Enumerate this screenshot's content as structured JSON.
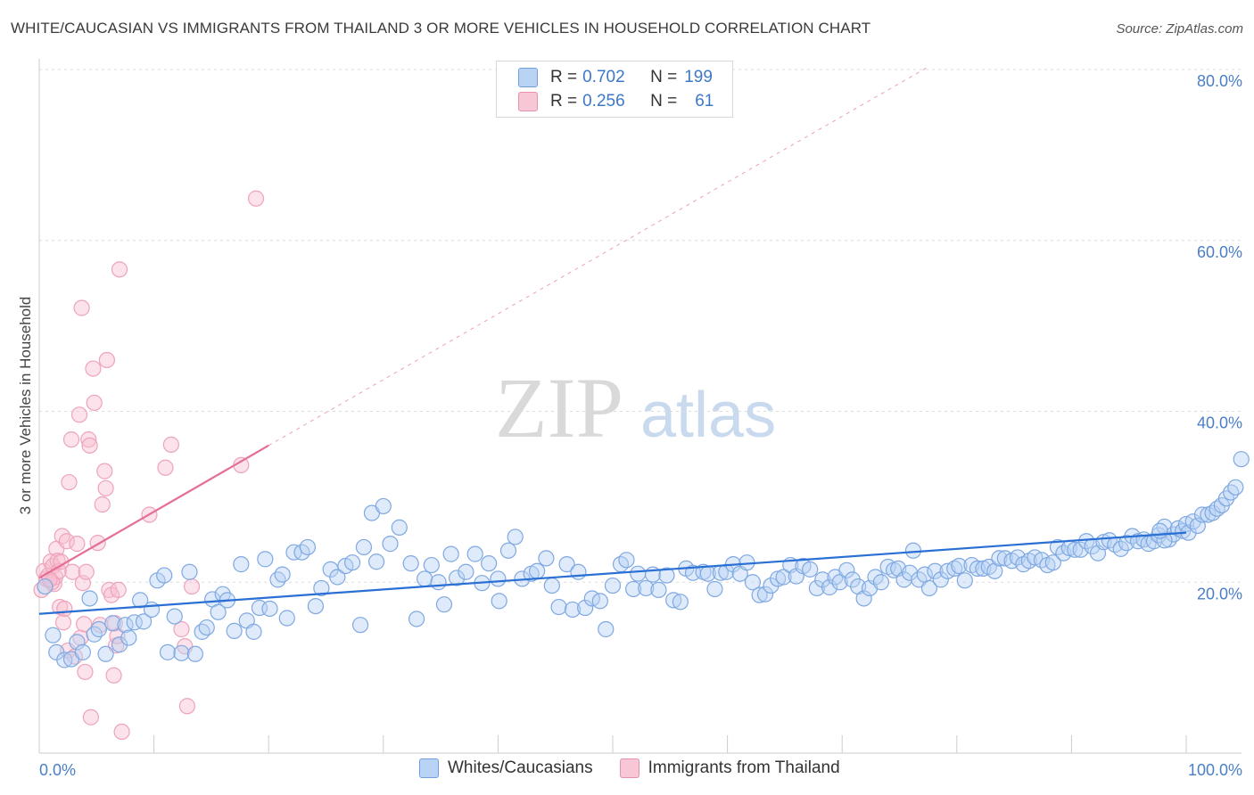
{
  "title": "WHITE/CAUCASIAN VS IMMIGRANTS FROM THAILAND 3 OR MORE VEHICLES IN HOUSEHOLD CORRELATION CHART",
  "source": "Source: ZipAtlas.com",
  "watermark": {
    "zip": "ZIP",
    "atlas": "atlas"
  },
  "legend_top": [
    {
      "r_label": "R = ",
      "r": "0.702",
      "n_label": "N = ",
      "n": "199",
      "color": "#6f9fe0"
    },
    {
      "r_label": "R = ",
      "r": "0.256",
      "n_label": "N = ",
      "n": "61",
      "color": "#e890ad"
    }
  ],
  "legend_bottom": [
    {
      "label": "Whites/Caucasians",
      "color": "#6f9fe0"
    },
    {
      "label": "Immigrants from Thailand",
      "color": "#e890ad"
    }
  ],
  "chart_data": {
    "type": "scatter",
    "title": "WHITE/CAUCASIAN VS IMMIGRANTS FROM THAILAND 3 OR MORE VEHICLES IN HOUSEHOLD CORRELATION CHART",
    "xlabel": "",
    "ylabel": "3 or more Vehicles in Household",
    "xlim": [
      0,
      100
    ],
    "ylim": [
      0,
      80
    ],
    "x_tick_labels": [
      "0.0%",
      "100.0%"
    ],
    "y_tick_labels": [
      "20.0%",
      "40.0%",
      "60.0%",
      "80.0%"
    ],
    "y_tick_values": [
      20,
      40,
      60,
      80
    ],
    "grid": true,
    "legend_position": "top-center",
    "series": [
      {
        "name": "Whites/Caucasians",
        "color": "#6f9fe0",
        "trend": {
          "x": [
            0,
            100
          ],
          "y": [
            16.3,
            25.8
          ]
        },
        "points": [
          [
            0.5,
            19.5
          ],
          [
            1.2,
            13.8
          ],
          [
            1.5,
            11.8
          ],
          [
            2.2,
            10.9
          ],
          [
            2.8,
            11.0
          ],
          [
            3.3,
            13.0
          ],
          [
            3.8,
            11.8
          ],
          [
            4.4,
            18.1
          ],
          [
            4.8,
            13.9
          ],
          [
            5.2,
            14.5
          ],
          [
            5.8,
            11.6
          ],
          [
            6.4,
            15.2
          ],
          [
            7.0,
            12.7
          ],
          [
            7.5,
            15.0
          ],
          [
            7.8,
            13.5
          ],
          [
            8.3,
            15.3
          ],
          [
            8.8,
            17.9
          ],
          [
            9.1,
            15.4
          ],
          [
            9.8,
            16.8
          ],
          [
            10.3,
            20.2
          ],
          [
            10.9,
            20.8
          ],
          [
            11.2,
            11.8
          ],
          [
            11.8,
            16.0
          ],
          [
            12.4,
            11.7
          ],
          [
            13.1,
            21.2
          ],
          [
            13.6,
            11.6
          ],
          [
            14.2,
            14.2
          ],
          [
            14.6,
            14.7
          ],
          [
            15.1,
            18.0
          ],
          [
            15.6,
            16.5
          ],
          [
            16.0,
            18.6
          ],
          [
            16.4,
            17.9
          ],
          [
            17.0,
            14.3
          ],
          [
            17.6,
            22.1
          ],
          [
            18.1,
            15.5
          ],
          [
            18.7,
            14.2
          ],
          [
            19.2,
            17.0
          ],
          [
            19.7,
            22.7
          ],
          [
            20.1,
            16.9
          ],
          [
            20.8,
            20.3
          ],
          [
            21.2,
            20.9
          ],
          [
            21.6,
            15.8
          ],
          [
            22.2,
            23.5
          ],
          [
            22.9,
            23.5
          ],
          [
            23.4,
            24.1
          ],
          [
            24.1,
            17.2
          ],
          [
            24.6,
            19.3
          ],
          [
            25.4,
            21.5
          ],
          [
            26.0,
            20.6
          ],
          [
            26.7,
            21.9
          ],
          [
            27.3,
            22.3
          ],
          [
            28.0,
            15.0
          ],
          [
            28.3,
            24.1
          ],
          [
            29.0,
            28.1
          ],
          [
            29.4,
            22.4
          ],
          [
            30.0,
            28.9
          ],
          [
            30.6,
            24.5
          ],
          [
            31.4,
            26.4
          ],
          [
            32.4,
            22.2
          ],
          [
            32.9,
            15.7
          ],
          [
            33.6,
            20.4
          ],
          [
            34.2,
            22.0
          ],
          [
            34.8,
            20.0
          ],
          [
            35.3,
            17.4
          ],
          [
            35.9,
            23.3
          ],
          [
            36.4,
            20.5
          ],
          [
            37.2,
            21.2
          ],
          [
            38.0,
            23.3
          ],
          [
            38.6,
            19.9
          ],
          [
            39.2,
            22.2
          ],
          [
            40.0,
            20.4
          ],
          [
            40.1,
            17.8
          ],
          [
            40.9,
            23.7
          ],
          [
            41.5,
            25.3
          ],
          [
            42.1,
            20.4
          ],
          [
            42.9,
            21.0
          ],
          [
            43.4,
            21.3
          ],
          [
            44.2,
            22.8
          ],
          [
            44.7,
            19.6
          ],
          [
            45.3,
            17.1
          ],
          [
            46.0,
            22.1
          ],
          [
            46.5,
            16.8
          ],
          [
            47.0,
            21.2
          ],
          [
            47.6,
            17.0
          ],
          [
            48.2,
            18.1
          ],
          [
            48.9,
            17.8
          ],
          [
            49.4,
            14.5
          ],
          [
            50.0,
            19.6
          ],
          [
            50.7,
            22.1
          ],
          [
            51.2,
            22.6
          ],
          [
            51.8,
            19.2
          ],
          [
            52.2,
            21.0
          ],
          [
            52.9,
            19.3
          ],
          [
            53.5,
            20.9
          ],
          [
            54.0,
            19.1
          ],
          [
            54.7,
            20.8
          ],
          [
            55.3,
            17.9
          ],
          [
            55.9,
            17.7
          ],
          [
            56.4,
            21.6
          ],
          [
            57.0,
            21.1
          ],
          [
            57.9,
            21.2
          ],
          [
            58.3,
            21.0
          ],
          [
            58.9,
            19.2
          ],
          [
            59.4,
            21.1
          ],
          [
            59.9,
            21.2
          ],
          [
            60.5,
            22.1
          ],
          [
            61.1,
            21.0
          ],
          [
            61.7,
            22.3
          ],
          [
            62.2,
            20.0
          ],
          [
            62.8,
            18.5
          ],
          [
            63.3,
            18.6
          ],
          [
            63.8,
            19.6
          ],
          [
            64.4,
            20.4
          ],
          [
            64.9,
            20.6
          ],
          [
            65.5,
            22.0
          ],
          [
            66.0,
            20.7
          ],
          [
            66.6,
            21.9
          ],
          [
            67.2,
            21.5
          ],
          [
            67.8,
            19.3
          ],
          [
            68.3,
            20.3
          ],
          [
            68.9,
            19.4
          ],
          [
            69.4,
            20.6
          ],
          [
            69.8,
            20.0
          ],
          [
            70.4,
            21.4
          ],
          [
            70.9,
            20.3
          ],
          [
            71.4,
            19.5
          ],
          [
            71.9,
            18.1
          ],
          [
            72.4,
            19.3
          ],
          [
            72.9,
            20.6
          ],
          [
            73.4,
            20.0
          ],
          [
            74.0,
            21.8
          ],
          [
            74.5,
            21.4
          ],
          [
            74.9,
            21.6
          ],
          [
            75.4,
            20.3
          ],
          [
            75.9,
            21.1
          ],
          [
            76.2,
            23.7
          ],
          [
            76.7,
            20.3
          ],
          [
            77.2,
            20.9
          ],
          [
            77.6,
            19.3
          ],
          [
            78.1,
            21.3
          ],
          [
            78.6,
            20.3
          ],
          [
            79.2,
            21.3
          ],
          [
            79.8,
            21.6
          ],
          [
            80.2,
            21.9
          ],
          [
            80.7,
            20.2
          ],
          [
            81.3,
            22.0
          ],
          [
            81.8,
            21.6
          ],
          [
            82.3,
            21.6
          ],
          [
            82.8,
            21.8
          ],
          [
            83.3,
            21.3
          ],
          [
            83.7,
            22.8
          ],
          [
            84.2,
            22.8
          ],
          [
            84.8,
            22.5
          ],
          [
            85.3,
            22.9
          ],
          [
            85.8,
            22.1
          ],
          [
            86.3,
            22.5
          ],
          [
            86.8,
            22.9
          ],
          [
            87.4,
            22.6
          ],
          [
            87.9,
            22.0
          ],
          [
            88.4,
            22.3
          ],
          [
            88.8,
            24.1
          ],
          [
            89.3,
            23.4
          ],
          [
            89.8,
            24.0
          ],
          [
            90.3,
            23.8
          ],
          [
            90.8,
            23.8
          ],
          [
            91.3,
            24.8
          ],
          [
            91.8,
            24.2
          ],
          [
            92.3,
            23.4
          ],
          [
            92.8,
            24.7
          ],
          [
            93.3,
            24.9
          ],
          [
            93.8,
            24.4
          ],
          [
            94.3,
            23.9
          ],
          [
            94.8,
            24.6
          ],
          [
            95.3,
            25.4
          ],
          [
            95.8,
            24.8
          ],
          [
            96.3,
            25.0
          ],
          [
            96.7,
            24.5
          ],
          [
            97.2,
            24.8
          ],
          [
            97.6,
            25.5
          ],
          [
            98.1,
            26.5
          ],
          [
            98.5,
            25.0
          ],
          [
            98.9,
            25.6
          ],
          [
            99.3,
            26.3
          ],
          [
            99.7,
            26.0
          ],
          [
            100.0,
            26.8
          ],
          [
            100.2,
            25.8
          ],
          [
            100.6,
            27.1
          ],
          [
            101.0,
            26.6
          ],
          [
            101.4,
            27.9
          ],
          [
            101.9,
            27.9
          ],
          [
            102.3,
            28.1
          ],
          [
            102.7,
            28.6
          ],
          [
            103.1,
            29.0
          ],
          [
            103.5,
            29.8
          ],
          [
            103.9,
            30.5
          ],
          [
            104.3,
            31.1
          ],
          [
            104.8,
            34.4
          ],
          [
            98.1,
            24.9
          ],
          [
            97.7,
            26.0
          ]
        ]
      },
      {
        "name": "Immigrants from Thailand",
        "color": "#e890ad",
        "trend": {
          "x": [
            0,
            20
          ],
          "y": [
            20.5,
            36.0
          ]
        },
        "trend_extension": {
          "x": [
            20,
            77.5
          ],
          "y": [
            36.0,
            80.3
          ]
        },
        "points": [
          [
            0.2,
            19.1
          ],
          [
            0.4,
            21.3
          ],
          [
            0.6,
            20.4
          ],
          [
            0.8,
            20.8
          ],
          [
            1.0,
            22.4
          ],
          [
            1.2,
            21.9
          ],
          [
            1.3,
            19.8
          ],
          [
            1.4,
            20.6
          ],
          [
            1.5,
            23.9
          ],
          [
            1.6,
            22.5
          ],
          [
            1.7,
            21.3
          ],
          [
            1.8,
            17.1
          ],
          [
            1.9,
            22.4
          ],
          [
            2.0,
            25.4
          ],
          [
            2.1,
            15.3
          ],
          [
            2.2,
            16.9
          ],
          [
            2.4,
            24.8
          ],
          [
            2.5,
            12.0
          ],
          [
            2.6,
            31.7
          ],
          [
            2.8,
            36.7
          ],
          [
            2.9,
            21.2
          ],
          [
            3.1,
            11.3
          ],
          [
            3.3,
            24.5
          ],
          [
            3.5,
            39.6
          ],
          [
            3.6,
            13.5
          ],
          [
            3.7,
            52.1
          ],
          [
            3.8,
            19.9
          ],
          [
            3.9,
            15.1
          ],
          [
            4.0,
            9.5
          ],
          [
            4.1,
            21.2
          ],
          [
            4.3,
            36.7
          ],
          [
            4.4,
            36.0
          ],
          [
            4.5,
            4.2
          ],
          [
            4.7,
            45.0
          ],
          [
            4.8,
            41.0
          ],
          [
            5.1,
            24.6
          ],
          [
            5.3,
            15.0
          ],
          [
            5.5,
            29.1
          ],
          [
            5.7,
            33.0
          ],
          [
            5.8,
            31.0
          ],
          [
            5.9,
            46.0
          ],
          [
            6.1,
            19.1
          ],
          [
            6.3,
            18.5
          ],
          [
            6.5,
            9.1
          ],
          [
            6.6,
            15.2
          ],
          [
            6.7,
            12.6
          ],
          [
            6.8,
            13.7
          ],
          [
            6.9,
            19.1
          ],
          [
            7.0,
            56.6
          ],
          [
            7.2,
            2.5
          ],
          [
            9.6,
            27.9
          ],
          [
            11.0,
            33.4
          ],
          [
            11.5,
            36.1
          ],
          [
            12.4,
            14.5
          ],
          [
            12.7,
            12.5
          ],
          [
            12.9,
            5.5
          ],
          [
            13.3,
            19.5
          ],
          [
            17.6,
            33.7
          ],
          [
            18.9,
            64.9
          ],
          [
            1.1,
            20.0
          ],
          [
            0.9,
            20.3
          ]
        ]
      }
    ]
  }
}
